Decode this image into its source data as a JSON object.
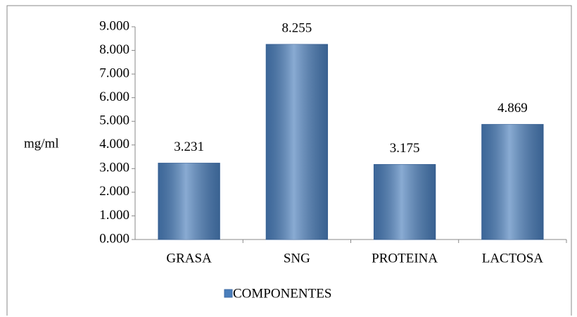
{
  "chart_data": {
    "type": "bar",
    "y_label": "mg/ml",
    "categories": [
      "GRASA",
      "SNG",
      "PROTEINA",
      "LACTOSA"
    ],
    "series": [
      {
        "name": "COMPONENTES",
        "color": "#4a7ebb",
        "values": [
          3.231,
          8.255,
          3.175,
          4.869
        ]
      }
    ],
    "ylim": [
      0,
      9
    ],
    "yticks": [
      {
        "value": 0,
        "label": "0.000"
      },
      {
        "value": 1,
        "label": "1.000"
      },
      {
        "value": 2,
        "label": "2.000"
      },
      {
        "value": 3,
        "label": "3.000"
      },
      {
        "value": 4,
        "label": "4.000"
      },
      {
        "value": 5,
        "label": "5.000"
      },
      {
        "value": 6,
        "label": "6.000"
      },
      {
        "value": 7,
        "label": "7.000"
      },
      {
        "value": 8,
        "label": "8.000"
      },
      {
        "value": 9,
        "label": "9.000"
      }
    ],
    "grid": false,
    "legend": "bottom"
  }
}
